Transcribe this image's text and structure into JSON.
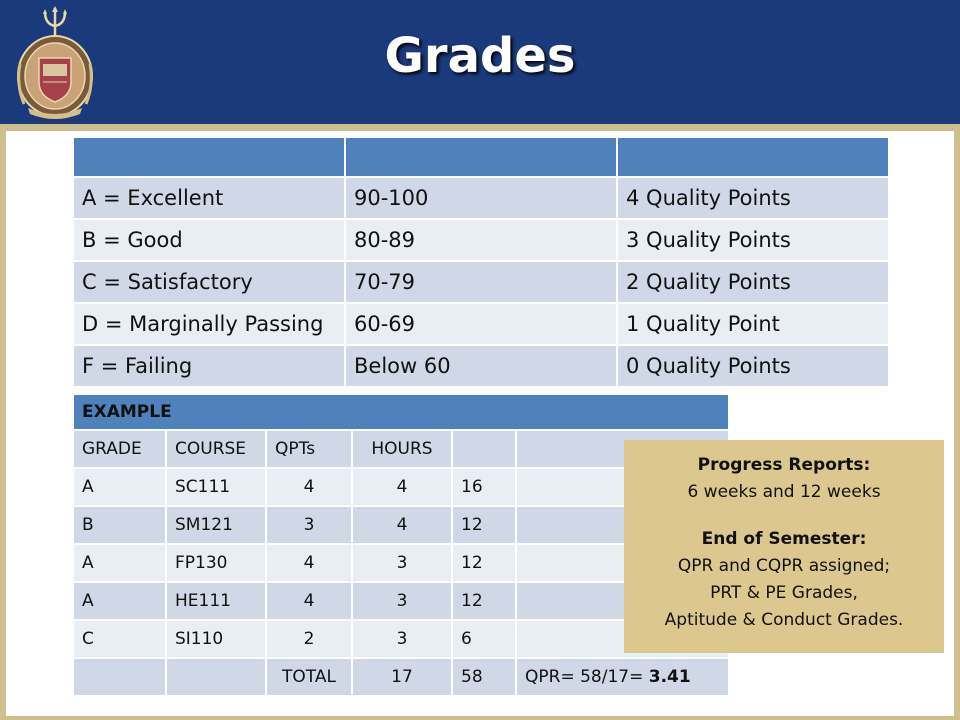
{
  "slide": {
    "title": "Grades"
  },
  "grade_scale": {
    "rows": [
      {
        "grade": "A = Excellent",
        "range": "90-100",
        "points": "4 Quality Points"
      },
      {
        "grade": "B = Good",
        "range": "80-89",
        "points": "3 Quality Points"
      },
      {
        "grade": "C = Satisfactory",
        "range": "70-79",
        "points": "2 Quality Points"
      },
      {
        "grade": "D = Marginally Passing",
        "range": "60-69",
        "points": "1 Quality Point"
      },
      {
        "grade": "F = Failing",
        "range": "Below 60",
        "points": "0 Quality Points"
      }
    ]
  },
  "example": {
    "title": "EXAMPLE",
    "headers": [
      "GRADE",
      "COURSE",
      "QPTs",
      "HOURS",
      "",
      ""
    ],
    "rows": [
      {
        "grade": "A",
        "course": "SC111",
        "qpts": "4",
        "hours": "4",
        "product": "16"
      },
      {
        "grade": "B",
        "course": "SM121",
        "qpts": "3",
        "hours": "4",
        "product": "12"
      },
      {
        "grade": "A",
        "course": "FP130",
        "qpts": "4",
        "hours": "3",
        "product": "12"
      },
      {
        "grade": "A",
        "course": "HE111",
        "qpts": "4",
        "hours": "3",
        "product": "12"
      },
      {
        "grade": "C",
        "course": "SI110",
        "qpts": "2",
        "hours": "3",
        "product": "6"
      }
    ],
    "total": {
      "label": "TOTAL",
      "hours": "17",
      "product": "58",
      "qpr_text": "QPR= 58/17= ",
      "qpr_value": "3.41"
    }
  },
  "note": {
    "progress_heading": "Progress Reports:",
    "progress_text": "6 weeks and 12 weeks",
    "semester_heading": "End of Semester:",
    "semester_lines": [
      "QPR and CQPR assigned;",
      "PRT & PE Grades,",
      "Aptitude & Conduct Grades."
    ]
  },
  "colors": {
    "header_blue": "#1b3a7c",
    "gold": "#cdbf8e",
    "table_header": "#4f81bd",
    "table_row_dark": "#d0d8e8",
    "table_row_light": "#e9edf4",
    "note_bg": "#dcc88f"
  },
  "icons": {
    "crest": "naval-academy-crest-icon"
  }
}
